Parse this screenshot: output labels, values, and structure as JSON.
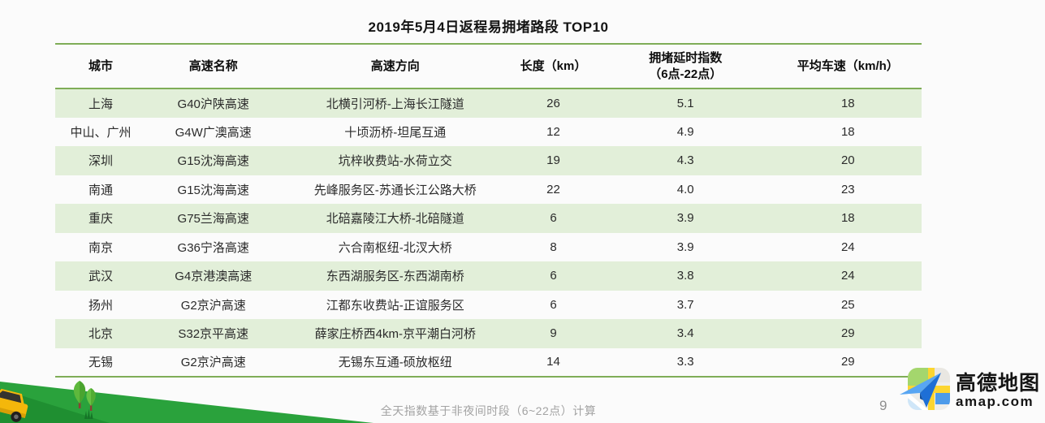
{
  "chart_data": {
    "type": "table",
    "title": "2019年5月4日返程易拥堵路段 TOP10",
    "columns": [
      {
        "label": "城市",
        "sublabel": ""
      },
      {
        "label": "高速名称",
        "sublabel": ""
      },
      {
        "label": "高速方向",
        "sublabel": ""
      },
      {
        "label": "长度（km）",
        "sublabel": ""
      },
      {
        "label": "拥堵延时指数",
        "sublabel": "（6点-22点）"
      },
      {
        "label": "平均车速（km/h）",
        "sublabel": ""
      }
    ],
    "rows": [
      [
        "上海",
        "G40沪陕高速",
        "北横引河桥-上海长江隧道",
        "26",
        "5.1",
        "18"
      ],
      [
        "中山、广州",
        "G4W广澳高速",
        "十顷沥桥-坦尾互通",
        "12",
        "4.9",
        "18"
      ],
      [
        "深圳",
        "G15沈海高速",
        "坑梓收费站-水荷立交",
        "19",
        "4.3",
        "20"
      ],
      [
        "南通",
        "G15沈海高速",
        "先峰服务区-苏通长江公路大桥",
        "22",
        "4.0",
        "23"
      ],
      [
        "重庆",
        "G75兰海高速",
        "北碚嘉陵江大桥-北碚隧道",
        "6",
        "3.9",
        "18"
      ],
      [
        "南京",
        "G36宁洛高速",
        "六合南枢纽-北汊大桥",
        "8",
        "3.9",
        "24"
      ],
      [
        "武汉",
        "G4京港澳高速",
        "东西湖服务区-东西湖南桥",
        "6",
        "3.8",
        "24"
      ],
      [
        "扬州",
        "G2京沪高速",
        "江都东收费站-正谊服务区",
        "6",
        "3.7",
        "25"
      ],
      [
        "北京",
        "S32京平高速",
        "薛家庄桥西4km-京平潮白河桥",
        "9",
        "3.4",
        "29"
      ],
      [
        "无锡",
        "G2京沪高速",
        "无锡东互通-硕放枢纽",
        "14",
        "3.3",
        "29"
      ]
    ]
  },
  "footer": {
    "note": "全天指数基于非夜间时段（6~22点）计算",
    "page_number": "9"
  },
  "logo": {
    "name": "高德地图",
    "domain": "amap.com",
    "icon": "amap-map-plane-icon"
  },
  "illustration": {
    "items": [
      "green-hill",
      "yellow-car",
      "trees",
      "grass"
    ]
  },
  "colors": {
    "accent_green": "#7fad57",
    "row_band_green": "#e2efd9",
    "hill_green": "#2aa23c",
    "logo_blue": "#1e6fd6",
    "car_yellow": "#f4b70b"
  }
}
